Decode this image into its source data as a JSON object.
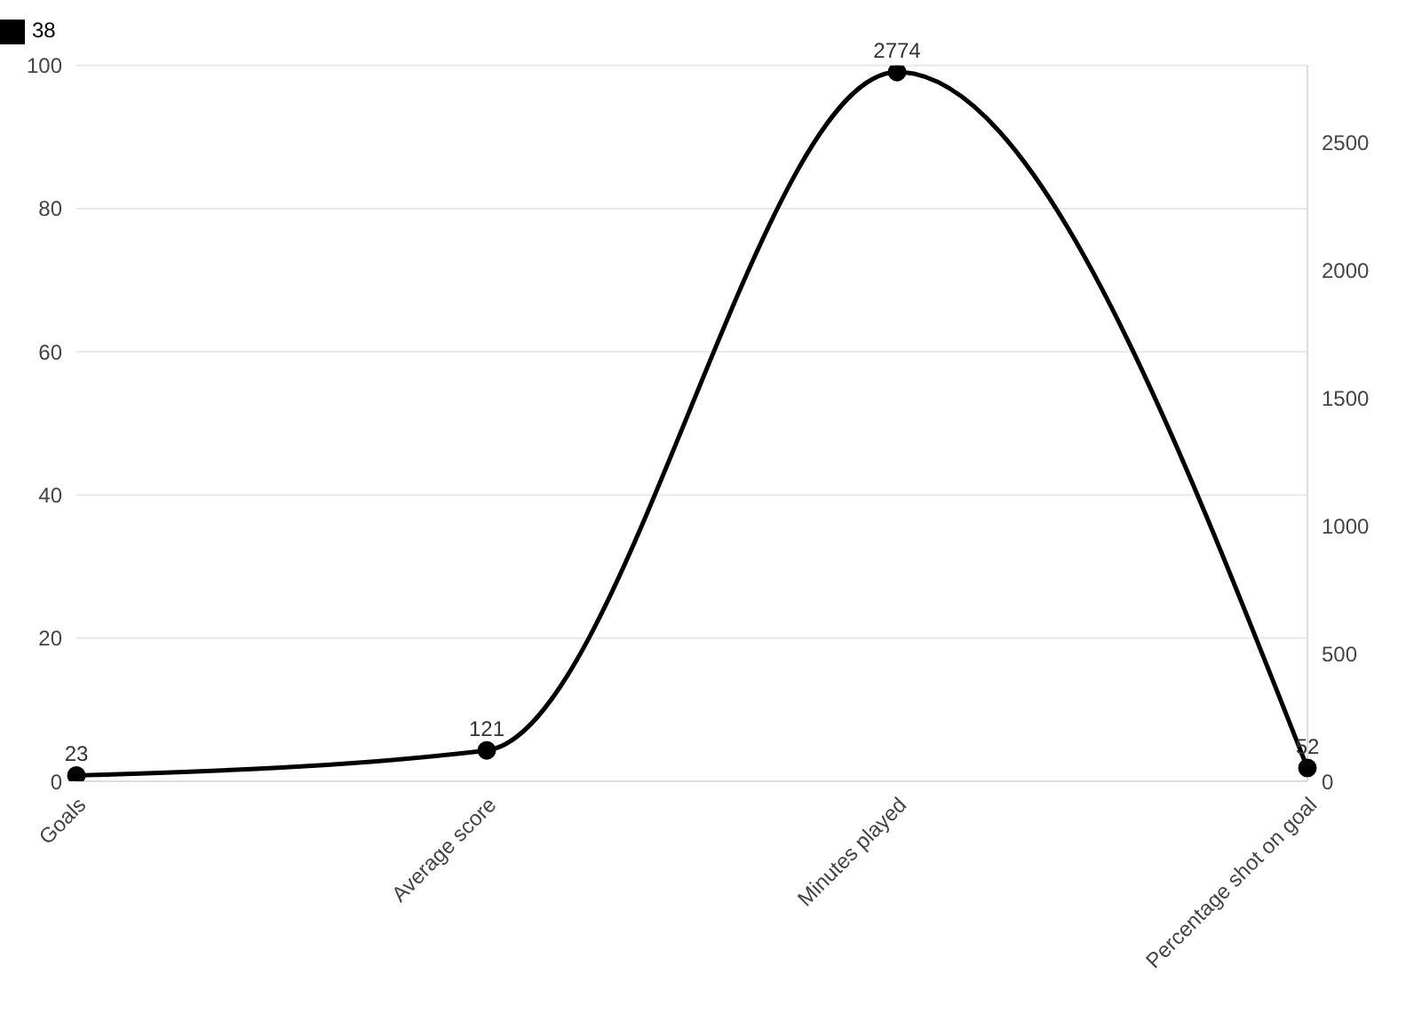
{
  "chart_data": {
    "type": "line",
    "categories": [
      "Goals",
      "Average score",
      "Minutes played",
      "Percentage shot on goal"
    ],
    "series": [
      {
        "name": "38",
        "color": "#000000",
        "values": [
          23,
          121,
          2774,
          52
        ],
        "axis": "y2"
      }
    ],
    "ylim": [
      0,
      100
    ],
    "yticks": [
      0,
      20,
      40,
      60,
      80,
      100
    ],
    "y2lim": [
      0,
      2800
    ],
    "y2ticks": [
      0,
      500,
      1000,
      1500,
      2000,
      2500
    ],
    "grid": "y",
    "legend": "top left",
    "marker": "circle",
    "data_labels": true
  }
}
